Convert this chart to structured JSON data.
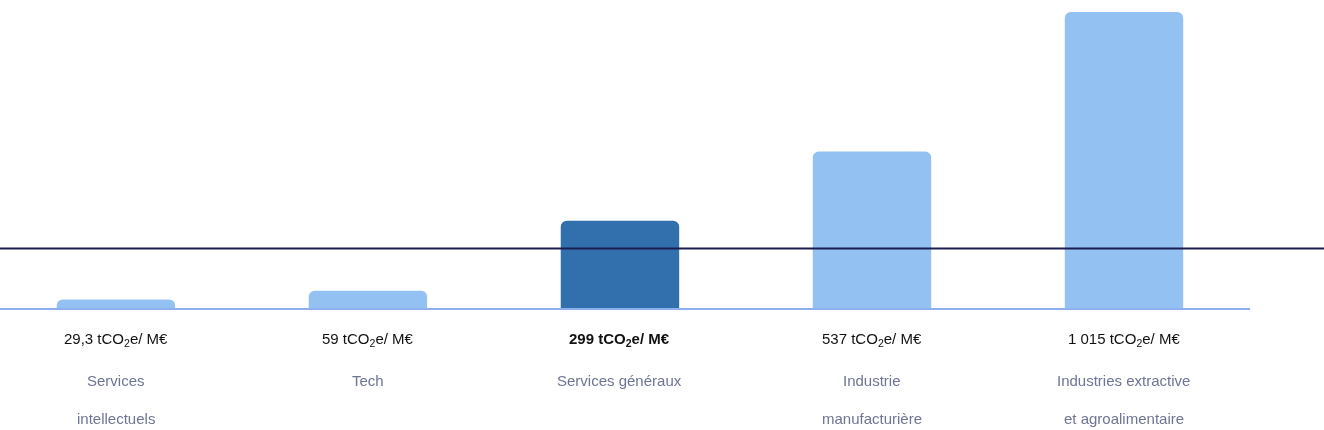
{
  "chart_data": {
    "type": "bar",
    "categories": [
      "Services intellectuels",
      "Tech",
      "Services généraux",
      "Industrie manufacturière",
      "Industries extractive et agroalimentaire"
    ],
    "values": [
      29.3,
      59,
      299,
      537,
      1015
    ],
    "value_labels": [
      "29,3 tCO$_{2}$e/ M€",
      "59 tCO$_{2}$e/ M€",
      "299 tCO$_{2}$e/ M€",
      "537 tCO$_{2}$e/ M€",
      "1 015 tCO$_{2}$e/ M€"
    ],
    "colors": [
      "#93c2f2",
      "#93c2f2",
      "#3270ad",
      "#93c2f2",
      "#93c2f2"
    ],
    "ref_lines": [
      {
        "axis": "y",
        "value": 204,
        "color": "#1b1c50",
        "line_style": "solid"
      }
    ],
    "legend": false
  }
}
